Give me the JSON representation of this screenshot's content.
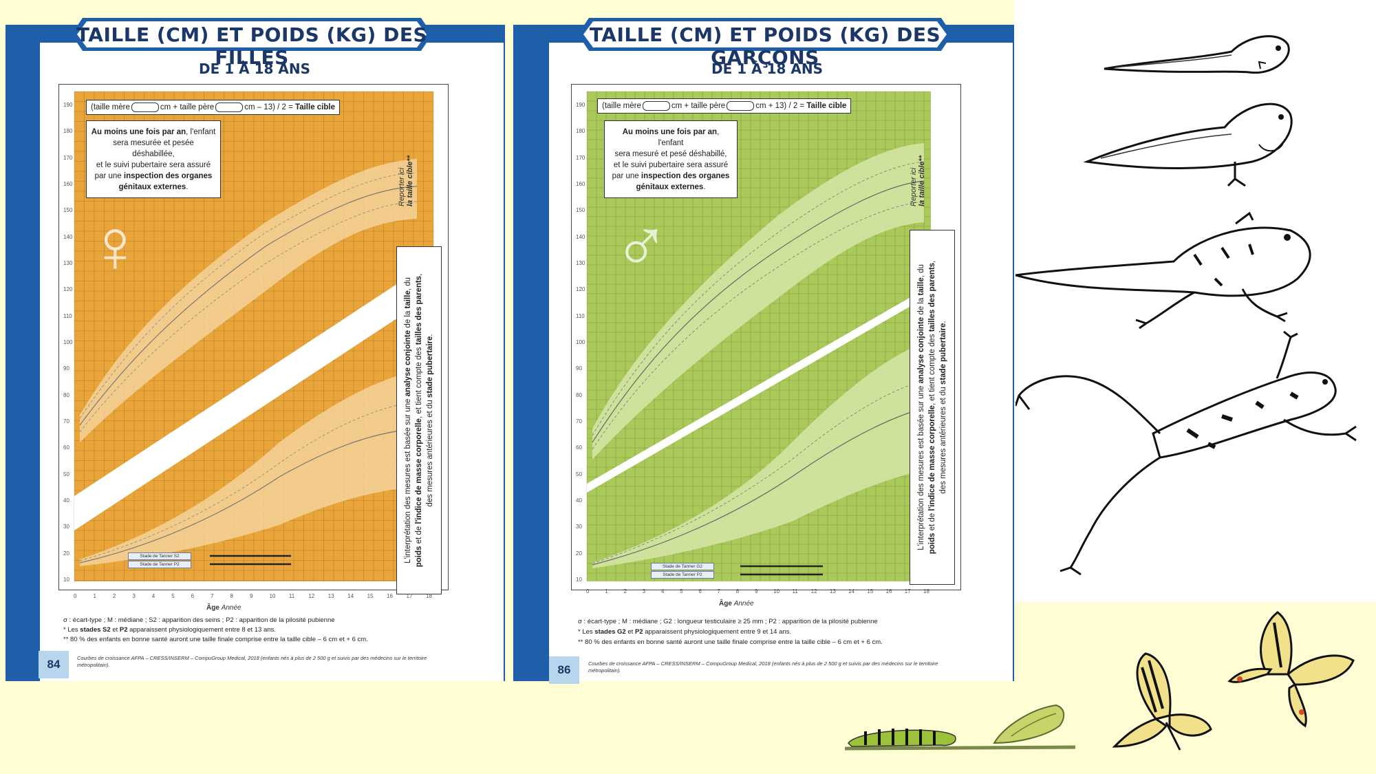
{
  "pages": [
    {
      "banner": "TAILLE (CM) ET POIDS (KG) DES FILLES",
      "subtitle": "DE 1 À 18 ANS",
      "formula": {
        "pre": "(taille mère",
        "mid": "cm + taille père",
        "post": "cm – 13) / 2 =",
        "target": "Taille cible"
      },
      "note": {
        "bold1": "Au moins une fois par an",
        "line1": ", l'enfant",
        "line2": "sera mesurée et pesée déshabillée,",
        "line3": "et le suivi pubertaire sera assuré",
        "line4": "par une",
        "bold2": "inspection des organes",
        "bold3": "génitaux externes",
        "end": "."
      },
      "cible": {
        "line1": "Reporter ici",
        "line2": "la taille cible**"
      },
      "side": {
        "t1": "L'interprétation des mesures est basée sur une",
        "b1": "analyse conjointe",
        "t2": "de la",
        "b2": "taille",
        "t3": ", du",
        "b3": "poids",
        "t4": "et de",
        "b4": "l'indice de masse corporelle",
        "t5": ", et tient compte des",
        "b5": "tailles des parents",
        "t6": ", des mesures antérieures et du",
        "b6": "stade pubertaire",
        "t7": "."
      },
      "tanner1": "Stade de Tanner S2",
      "tanner2": "Stade de Tanner P2",
      "axis_title": "Âge",
      "axis_unit": "Année",
      "legend1": "σ : écart-type ; M : médiane ; S2 : apparition des seins ; P2 : apparition de la pilosité pubienne",
      "legend2_pre": "* Les",
      "legend2_b1": "stades S2",
      "legend2_mid": "et",
      "legend2_b2": "P2",
      "legend2_post": "apparaissent physiologiquement entre 8 et 13 ans.",
      "legend3": "** 80 % des enfants en bonne santé auront une taille finale comprise entre la taille cible – 6 cm et + 6 cm.",
      "page_number": "84",
      "source": "Courbes de croissance AFPA – CRESS/INSERM – CompuGroup Medical, 2018 (enfants nés à plus de 2 500 g et suivis par des médecins sur le territoire métropolitain).",
      "bg": "#e9a53a",
      "band": "#f4d29a",
      "ymax_left": "200",
      "ymax_right": "200"
    },
    {
      "banner": "TAILLE (CM) ET POIDS (KG) DES GARÇONS",
      "subtitle": "DE 1 À 18 ANS",
      "formula": {
        "pre": "(taille mère",
        "mid": "cm + taille père",
        "post": "cm + 13) / 2 =",
        "target": "Taille cible"
      },
      "note": {
        "bold1": "Au moins une fois par an",
        "line1": ", l'enfant",
        "line2": "sera mesuré et pesé déshabillé,",
        "line3": "et le suivi pubertaire sera assuré",
        "line4": "par une",
        "bold2": "inspection des organes",
        "bold3": "génitaux externes",
        "end": "."
      },
      "cible": {
        "line1": "Reporter ici",
        "line2": "la taille cible**"
      },
      "side": {
        "t1": "L'interprétation des mesures est basée sur une",
        "b1": "analyse conjointe",
        "t2": "de la",
        "b2": "taille",
        "t3": ", du",
        "b3": "poids",
        "t4": "et de",
        "b4": "l'indice de masse corporelle",
        "t5": ", et tient compte des",
        "b5": "tailles des parents",
        "t6": ", des mesures antérieures et du",
        "b6": "stade pubertaire",
        "t7": "."
      },
      "tanner1": "Stade de Tanner G2",
      "tanner2": "Stade de Tanner P2",
      "axis_title": "Âge",
      "axis_unit": "Année",
      "legend1": "σ : écart-type ; M : médiane ; G2 : longueur testiculaire ≥ 25 mm ; P2 : apparition de la pilosité pubienne",
      "legend2_pre": "* Les",
      "legend2_b1": "stades G2",
      "legend2_mid": "et",
      "legend2_b2": "P2",
      "legend2_post": "apparaissent physiologiquement entre 9 et 14 ans.",
      "legend3": "** 80 % des enfants en bonne santé auront une taille finale comprise entre la taille cible – 6 cm et + 6 cm.",
      "page_number": "86",
      "source": "Courbes de croissance AFPA – CRESS/INSERM – CompuGroup Medical, 2018 (enfants nés à plus de 2 500 g et suivis par des médecins sur le territoire métropolitain).",
      "bg": "#a9c95a",
      "band": "#d6e6a8",
      "ymax_left": "210",
      "ymax_right": "210"
    }
  ],
  "age_ticks": [
    "0",
    "1",
    "2",
    "3",
    "4",
    "5",
    "6",
    "7",
    "8",
    "9",
    "10",
    "11",
    "12",
    "13",
    "14",
    "15",
    "16",
    "17",
    "18"
  ],
  "height_ticks": [
    "190",
    "180",
    "170",
    "160",
    "150",
    "140",
    "130",
    "120",
    "110",
    "100",
    "90",
    "80",
    "70",
    "60",
    "50",
    "40",
    "30",
    "20",
    "10"
  ],
  "colors": {
    "blue": "#1f5faa",
    "navy": "#1b3768",
    "cream": "#fffdd3"
  },
  "illustrations": [
    "tadpole-stage-1",
    "tadpole-stage-2",
    "froglet",
    "frog",
    "caterpillar",
    "chrysalis",
    "swallowtail-butterfly",
    "swallowtail-butterfly-flying"
  ]
}
